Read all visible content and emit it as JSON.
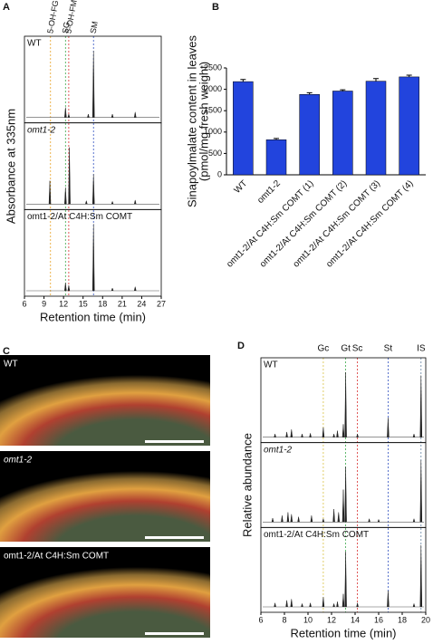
{
  "chart_data": [
    {
      "type": "chromatogram",
      "panel": "A",
      "xlabel": "Retention time (min)",
      "ylabel": "Absorbance at 335nm",
      "xlim": [
        6,
        27
      ],
      "xticks": [
        6,
        9,
        12,
        15,
        18,
        21,
        24,
        27
      ],
      "ylim": [
        0,
        1
      ],
      "markers": [
        {
          "label": "5-OH-FG",
          "x": 10,
          "color": "#e8a020"
        },
        {
          "label": "SG",
          "x": 12.3,
          "color": "#3aa84a"
        },
        {
          "label": "5-OH-FM",
          "x": 12.8,
          "color": "#d83030"
        },
        {
          "label": "SM",
          "x": 16.6,
          "color": "#3050c0"
        }
      ],
      "panels": [
        {
          "name": "WT",
          "x": [
            12.3,
            12.8,
            15.8,
            16.6,
            19.5,
            23
          ],
          "values": [
            0.15,
            0.05,
            0.05,
            1.0,
            0.05,
            0.08
          ]
        },
        {
          "name": "omt1-2",
          "x": [
            9.9,
            12.3,
            12.9,
            15.5,
            16.6,
            19.5,
            23
          ],
          "values": [
            0.35,
            0.25,
            0.85,
            0.05,
            0.45,
            0.04,
            0.06
          ]
        },
        {
          "name": "omt1-2/At C4H:Sm COMT",
          "x": [
            12.3,
            12.8,
            16.6,
            19.5,
            23
          ],
          "values": [
            0.12,
            0.08,
            1.0,
            0.04,
            0.06
          ]
        }
      ]
    },
    {
      "type": "bar",
      "panel": "B",
      "ylabel": [
        "Sinapoylmalate content in leaves",
        "(pmol/mg fresh weight)"
      ],
      "categories": [
        "WT",
        "omt1-2",
        "omt1-2/At C4H:Sm COMT (1)",
        "omt1-2/At C4H:Sm COMT (2)",
        "omt1-2/At C4H:Sm COMT (3)",
        "omt1-2/At C4H:Sm COMT (4)"
      ],
      "values": [
        2180,
        820,
        1880,
        1960,
        2190,
        2290
      ],
      "errors": [
        50,
        30,
        40,
        30,
        60,
        40
      ],
      "color": "#2244dd",
      "ylim": [
        0,
        2500
      ],
      "yticks": [
        0,
        500,
        1000,
        1500,
        2000,
        2500
      ]
    },
    {
      "type": "chromatogram",
      "panel": "D",
      "xlabel": "Retention time (min)",
      "ylabel": "Relative abundance",
      "xlim": [
        6,
        20
      ],
      "xticks": [
        6,
        8,
        10,
        12,
        14,
        16,
        18,
        20
      ],
      "ylim": [
        0,
        1
      ],
      "markers": [
        {
          "label": "Gc",
          "x": 11.3,
          "color": "#d8c040"
        },
        {
          "label": "Gt",
          "x": 13.2,
          "color": "#3aa84a"
        },
        {
          "label": "Sc",
          "x": 14.2,
          "color": "#d83030"
        },
        {
          "label": "St",
          "x": 16.8,
          "color": "#3050c0"
        },
        {
          "label": "IS",
          "x": 19.6,
          "color": "#6080a0"
        }
      ],
      "panels": [
        {
          "name": "WT",
          "x": [
            7.2,
            8.2,
            8.6,
            9.5,
            10.2,
            11.3,
            12.2,
            12.5,
            13.0,
            13.2,
            14.2,
            16.8,
            19.0,
            19.6
          ],
          "values": [
            0.05,
            0.08,
            0.12,
            0.05,
            0.06,
            0.15,
            0.05,
            0.1,
            0.2,
            1.0,
            0.05,
            0.3,
            0.05,
            0.95
          ]
        },
        {
          "name": "omt1-2",
          "x": [
            7.0,
            7.8,
            8.3,
            8.6,
            9.2,
            10.3,
            11.3,
            12.2,
            12.6,
            13.0,
            13.2,
            15.2,
            16.0,
            19.0,
            19.6
          ],
          "values": [
            0.06,
            0.1,
            0.15,
            0.12,
            0.08,
            0.1,
            0.05,
            0.2,
            0.15,
            0.5,
            0.85,
            0.05,
            0.04,
            0.05,
            0.95
          ]
        },
        {
          "name": "omt1-2/At C4H:Sm COMT",
          "x": [
            7.2,
            8.2,
            8.6,
            9.5,
            10.2,
            11.3,
            12.2,
            12.5,
            13.0,
            13.2,
            14.2,
            16.8,
            19.0,
            19.6
          ],
          "values": [
            0.06,
            0.1,
            0.12,
            0.05,
            0.06,
            0.15,
            0.05,
            0.08,
            0.2,
            0.85,
            0.06,
            0.25,
            0.05,
            0.95
          ]
        }
      ]
    }
  ],
  "micrographs": {
    "panel": "C",
    "captions": [
      "WT",
      "omt1-2",
      "omt1-2/At C4H:Sm COMT"
    ]
  }
}
